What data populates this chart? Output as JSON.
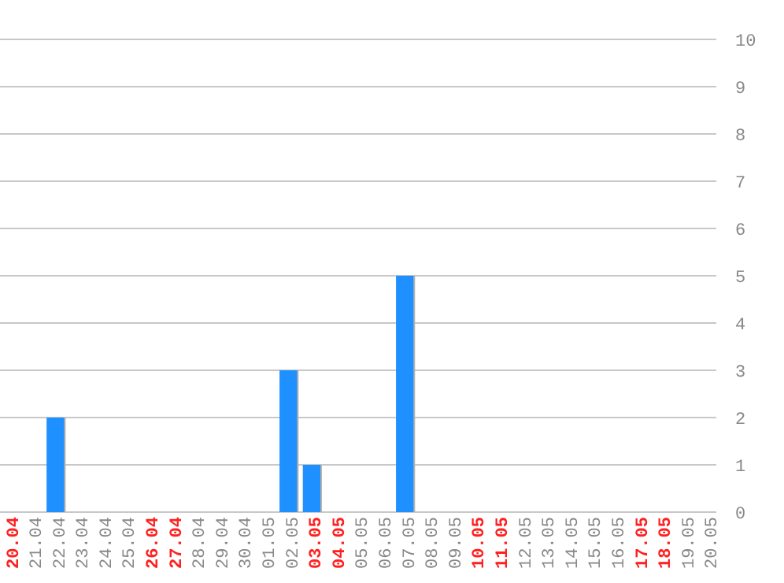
{
  "chart_data": {
    "type": "bar",
    "categories": [
      "20.04",
      "21.04",
      "22.04",
      "23.04",
      "24.04",
      "25.04",
      "26.04",
      "27.04",
      "28.04",
      "29.04",
      "30.04",
      "01.05",
      "02.05",
      "03.05",
      "04.05",
      "05.05",
      "06.05",
      "07.05",
      "08.05",
      "09.05",
      "10.05",
      "11.05",
      "12.05",
      "13.05",
      "14.05",
      "15.05",
      "16.05",
      "17.05",
      "18.05",
      "19.05",
      "20.05"
    ],
    "values": [
      0,
      0,
      2,
      0,
      0,
      0,
      0,
      0,
      0,
      0,
      0,
      0,
      3,
      1,
      0,
      0,
      0,
      5,
      0,
      0,
      0,
      0,
      0,
      0,
      0,
      0,
      0,
      0,
      0,
      0,
      0
    ],
    "color": "#1e90ff",
    "ylim": [
      0,
      10
    ],
    "yticks": [
      0,
      1,
      2,
      3,
      4,
      5,
      6,
      7,
      8,
      9,
      10
    ],
    "grid": "y"
  }
}
